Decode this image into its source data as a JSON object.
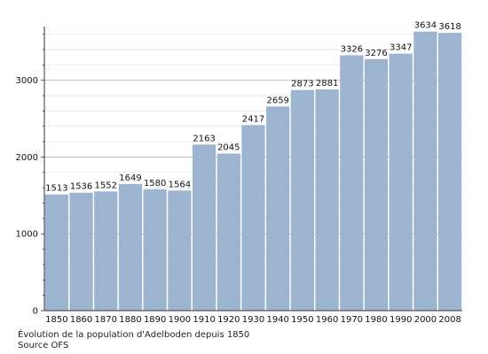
{
  "chart_data": {
    "type": "bar",
    "categories": [
      "1850",
      "1860",
      "1870",
      "1880",
      "1890",
      "1900",
      "1910",
      "1920",
      "1930",
      "1940",
      "1950",
      "1960",
      "1970",
      "1980",
      "1990",
      "2000",
      "2008"
    ],
    "values": [
      1513,
      1536,
      1552,
      1649,
      1580,
      1564,
      2163,
      2045,
      2417,
      2659,
      2873,
      2881,
      3326,
      3276,
      3347,
      3634,
      3618
    ],
    "title": "",
    "xlabel": "",
    "ylabel": "",
    "ylim": [
      0,
      3700
    ],
    "yticks": [
      0,
      1000,
      2000,
      3000
    ],
    "grid": true,
    "bar_color": "#9cb4cf",
    "grid_color": "#dddddd",
    "major_grid_color": "#aaaaaa"
  },
  "caption": {
    "line1": "Évolution de la population d'Adelboden depuis 1850",
    "line2": "Source OFS"
  }
}
